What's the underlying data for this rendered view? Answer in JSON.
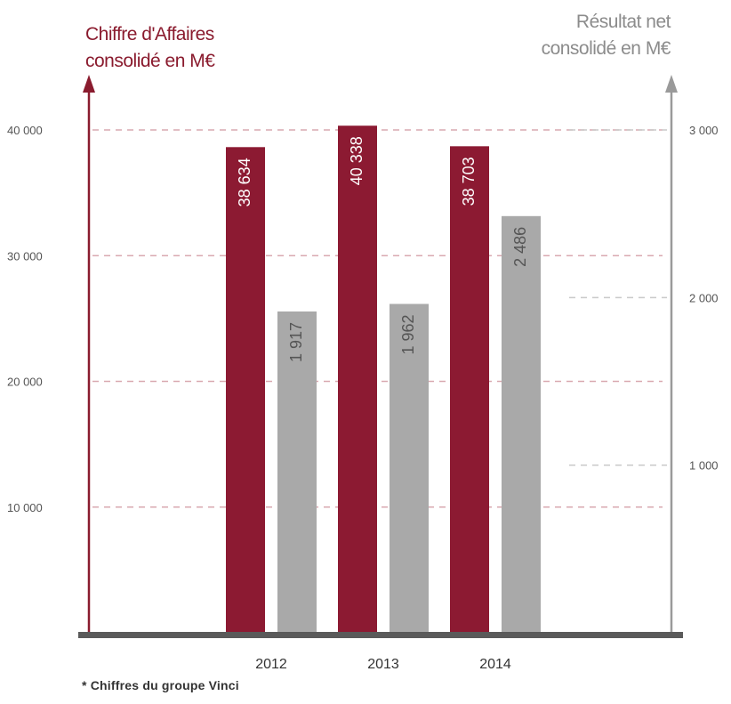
{
  "chart_data": {
    "type": "bar",
    "categories": [
      "2012",
      "2013",
      "2014"
    ],
    "left_axis_title": [
      "Chiffre d'Affaires",
      "consolidé en M€"
    ],
    "right_axis_title": [
      "Résultat net",
      "consolidé en M€"
    ],
    "left_ticks": [
      {
        "value": 10000,
        "label": "10 000"
      },
      {
        "value": 20000,
        "label": "20 000"
      },
      {
        "value": 30000,
        "label": "30 000"
      },
      {
        "value": 40000,
        "label": "40 000"
      }
    ],
    "right_ticks": [
      {
        "value": 1000,
        "label": "1 000"
      },
      {
        "value": 2000,
        "label": "2 000"
      },
      {
        "value": 3000,
        "label": "3 000"
      }
    ],
    "left_ylim": [
      0,
      40000
    ],
    "right_ylim": [
      0,
      3000
    ],
    "grid": true,
    "series": [
      {
        "axis": "left",
        "color": "#8c1a32",
        "label_color": "#ffffff",
        "values": [
          38634,
          40338,
          38703
        ],
        "labels": [
          "38 634",
          "40 338",
          "38 703"
        ]
      },
      {
        "axis": "right",
        "color": "#a9a9a9",
        "label_color": "#555555",
        "values": [
          1917,
          1962,
          2486
        ],
        "labels": [
          "1 917",
          "1 962",
          "2 486"
        ]
      }
    ],
    "colors": {
      "left_axis": "#8a1b2e",
      "right_axis": "#9a9a9a",
      "baseline": "#5a5a5a",
      "grid": "#d9a9b0",
      "tick_text": "#555555",
      "category_text": "#333333"
    }
  },
  "footnote": "* Chiffres du groupe Vinci"
}
